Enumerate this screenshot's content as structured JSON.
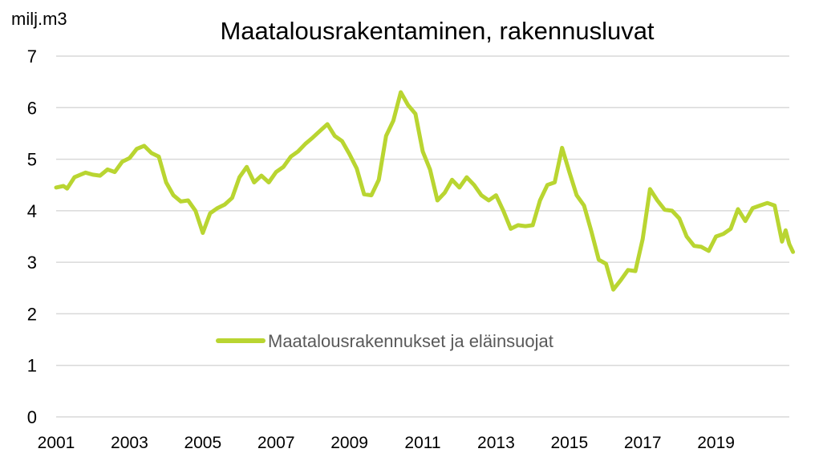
{
  "chart_data": {
    "type": "line",
    "title": "Maatalousrakentaminen, rakennusluvat",
    "ylabel": "milj.m3",
    "xlabel": "",
    "ylim": [
      0,
      7
    ],
    "yticks": [
      "0",
      "1",
      "2",
      "3",
      "4",
      "5",
      "6",
      "7"
    ],
    "xlim": [
      2001,
      2021
    ],
    "xticks": [
      "2001",
      "2003",
      "2005",
      "2007",
      "2009",
      "2011",
      "2013",
      "2015",
      "2017",
      "2019"
    ],
    "grid": true,
    "legend": "inside-center-left",
    "series": [
      {
        "name": "Maatalousrakennukset ja eläinsuojat",
        "color": "#b9d531",
        "points": [
          [
            2001.0,
            4.45
          ],
          [
            2001.2,
            4.48
          ],
          [
            2001.3,
            4.43
          ],
          [
            2001.5,
            4.65
          ],
          [
            2001.8,
            4.74
          ],
          [
            2002.0,
            4.7
          ],
          [
            2002.2,
            4.68
          ],
          [
            2002.4,
            4.8
          ],
          [
            2002.6,
            4.75
          ],
          [
            2002.8,
            4.95
          ],
          [
            2003.0,
            5.02
          ],
          [
            2003.2,
            5.2
          ],
          [
            2003.4,
            5.26
          ],
          [
            2003.6,
            5.12
          ],
          [
            2003.8,
            5.05
          ],
          [
            2004.0,
            4.55
          ],
          [
            2004.2,
            4.3
          ],
          [
            2004.4,
            4.18
          ],
          [
            2004.6,
            4.2
          ],
          [
            2004.8,
            4.0
          ],
          [
            2005.0,
            3.57
          ],
          [
            2005.2,
            3.95
          ],
          [
            2005.4,
            4.05
          ],
          [
            2005.6,
            4.12
          ],
          [
            2005.8,
            4.25
          ],
          [
            2006.0,
            4.65
          ],
          [
            2006.2,
            4.85
          ],
          [
            2006.4,
            4.55
          ],
          [
            2006.6,
            4.68
          ],
          [
            2006.8,
            4.55
          ],
          [
            2007.0,
            4.75
          ],
          [
            2007.2,
            4.85
          ],
          [
            2007.4,
            5.05
          ],
          [
            2007.6,
            5.15
          ],
          [
            2007.8,
            5.3
          ],
          [
            2008.0,
            5.42
          ],
          [
            2008.2,
            5.55
          ],
          [
            2008.4,
            5.68
          ],
          [
            2008.6,
            5.45
          ],
          [
            2008.8,
            5.35
          ],
          [
            2009.0,
            5.1
          ],
          [
            2009.2,
            4.82
          ],
          [
            2009.4,
            4.32
          ],
          [
            2009.6,
            4.3
          ],
          [
            2009.8,
            4.6
          ],
          [
            2010.0,
            5.45
          ],
          [
            2010.2,
            5.75
          ],
          [
            2010.4,
            6.3
          ],
          [
            2010.6,
            6.05
          ],
          [
            2010.8,
            5.88
          ],
          [
            2011.0,
            5.15
          ],
          [
            2011.2,
            4.8
          ],
          [
            2011.4,
            4.2
          ],
          [
            2011.6,
            4.35
          ],
          [
            2011.8,
            4.6
          ],
          [
            2012.0,
            4.45
          ],
          [
            2012.2,
            4.65
          ],
          [
            2012.4,
            4.5
          ],
          [
            2012.6,
            4.3
          ],
          [
            2012.8,
            4.2
          ],
          [
            2013.0,
            4.3
          ],
          [
            2013.2,
            4.0
          ],
          [
            2013.4,
            3.65
          ],
          [
            2013.6,
            3.72
          ],
          [
            2013.8,
            3.7
          ],
          [
            2014.0,
            3.72
          ],
          [
            2014.2,
            4.2
          ],
          [
            2014.4,
            4.5
          ],
          [
            2014.6,
            4.55
          ],
          [
            2014.8,
            5.22
          ],
          [
            2015.0,
            4.75
          ],
          [
            2015.2,
            4.3
          ],
          [
            2015.4,
            4.1
          ],
          [
            2015.6,
            3.6
          ],
          [
            2015.8,
            3.05
          ],
          [
            2016.0,
            2.97
          ],
          [
            2016.2,
            2.47
          ],
          [
            2016.4,
            2.65
          ],
          [
            2016.6,
            2.85
          ],
          [
            2016.8,
            2.83
          ],
          [
            2017.0,
            3.45
          ],
          [
            2017.2,
            4.42
          ],
          [
            2017.4,
            4.2
          ],
          [
            2017.6,
            4.02
          ],
          [
            2017.8,
            4.0
          ],
          [
            2018.0,
            3.85
          ],
          [
            2018.2,
            3.5
          ],
          [
            2018.4,
            3.32
          ],
          [
            2018.6,
            3.3
          ],
          [
            2018.8,
            3.22
          ],
          [
            2019.0,
            3.5
          ],
          [
            2019.2,
            3.55
          ],
          [
            2019.4,
            3.65
          ],
          [
            2019.6,
            4.03
          ],
          [
            2019.8,
            3.8
          ],
          [
            2020.0,
            4.05
          ],
          [
            2020.2,
            4.1
          ],
          [
            2020.4,
            4.15
          ],
          [
            2020.6,
            4.1
          ],
          [
            2020.8,
            3.4
          ],
          [
            2020.9,
            3.62
          ],
          [
            2021.0,
            3.35
          ],
          [
            2021.1,
            3.2
          ]
        ]
      }
    ]
  }
}
